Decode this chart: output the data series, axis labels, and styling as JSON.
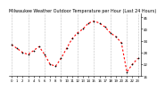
{
  "title": "Milwaukee Weather Outdoor Temperature per Hour (Last 24 Hours)",
  "hours": [
    0,
    1,
    2,
    3,
    4,
    5,
    6,
    7,
    8,
    9,
    10,
    11,
    12,
    13,
    14,
    15,
    16,
    17,
    18,
    19,
    20,
    21,
    22,
    23
  ],
  "temps": [
    32,
    30,
    28,
    27,
    29,
    31,
    27,
    22,
    21,
    25,
    30,
    35,
    38,
    40,
    43,
    44,
    43,
    41,
    38,
    36,
    33,
    18,
    22,
    25
  ],
  "ylim": [
    16,
    48
  ],
  "yticks": [
    16,
    22,
    28,
    34,
    40,
    46
  ],
  "ylabel_texts": [
    "16",
    "22",
    "28",
    "34",
    "40",
    "46"
  ],
  "line_color": "#ff0000",
  "marker_color": "#000000",
  "bg_color": "#ffffff",
  "grid_color": "#888888",
  "title_fontsize": 3.5,
  "tick_fontsize": 2.8,
  "line_width": 0.8,
  "marker_size": 1.8,
  "vgrid_positions": [
    0,
    3,
    6,
    9,
    12,
    15,
    18,
    21,
    23
  ]
}
